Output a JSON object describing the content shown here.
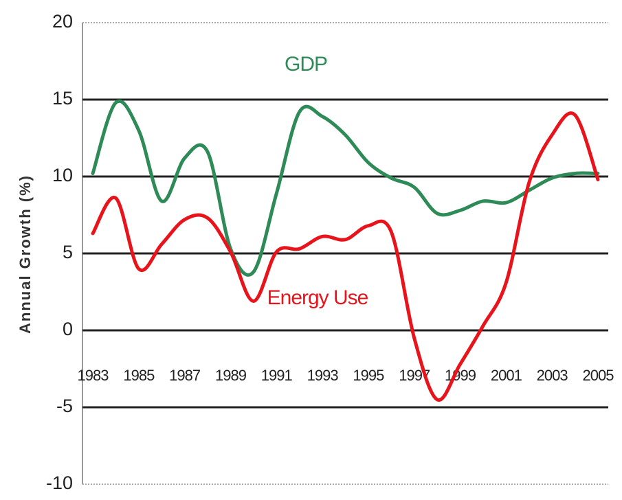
{
  "chart_data": {
    "type": "line",
    "y_label": "Annual Growth (%)",
    "annotations": [
      {
        "text": "GDP",
        "color": "#2e8b57"
      },
      {
        "text": "Energy Use",
        "color": "#e8141c"
      }
    ],
    "x": [
      1983,
      1984,
      1985,
      1986,
      1987,
      1988,
      1989,
      1990,
      1991,
      1992,
      1993,
      1994,
      1995,
      1996,
      1997,
      1998,
      1999,
      2000,
      2001,
      2002,
      2003,
      2004,
      2005
    ],
    "series": [
      {
        "name": "GDP",
        "color": "#2e8b57",
        "values": [
          10.2,
          14.8,
          13,
          8.4,
          11.2,
          11.6,
          5.3,
          3.8,
          8.9,
          14.2,
          13.9,
          12.7,
          10.9,
          9.9,
          9.3,
          7.6,
          7.8,
          8.4,
          8.3,
          9.1,
          9.9,
          10.2,
          10.2
        ]
      },
      {
        "name": "Energy Use",
        "color": "#e8141c",
        "values": [
          6.3,
          8.6,
          4,
          5.6,
          7.2,
          7.3,
          5.1,
          1.9,
          5.1,
          5.3,
          6.1,
          5.9,
          6.8,
          6.4,
          -0.5,
          -4.5,
          -2.2,
          0.3,
          3.1,
          9.6,
          12.7,
          14,
          9.8
        ]
      }
    ],
    "xlim": [
      1982.55,
      2005.45
    ],
    "xticks": [
      1983,
      1985,
      1987,
      1989,
      1991,
      1993,
      1995,
      1997,
      1999,
      2001,
      2003,
      2005
    ],
    "ylim": [
      -10,
      20
    ],
    "yticks": [
      -10,
      -5,
      0,
      5,
      10,
      15,
      20
    ],
    "grid": true
  }
}
